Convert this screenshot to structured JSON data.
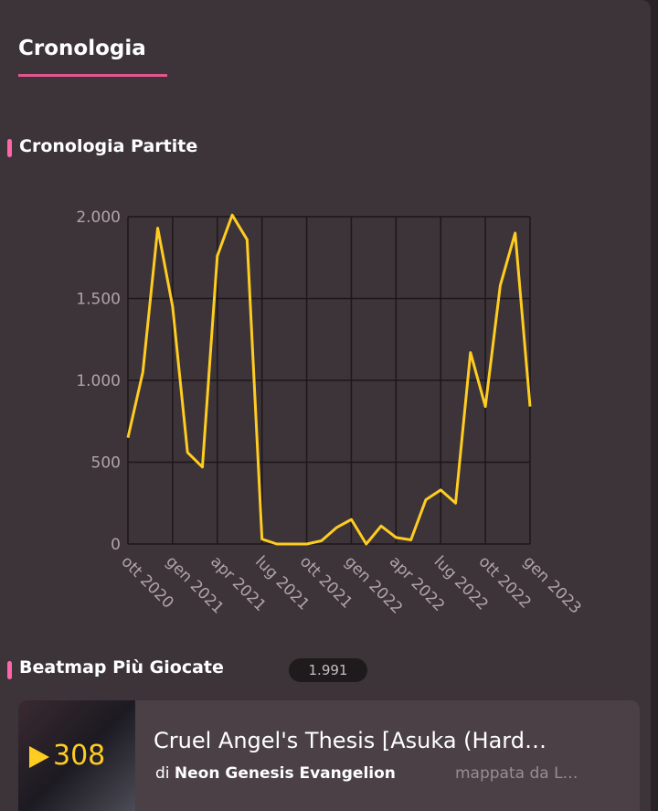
{
  "tab": "Cronologia",
  "section_title": "Cronologia Partite",
  "chart_data": {
    "type": "line",
    "categories": [
      "ott 2020",
      null,
      null,
      "gen 2021",
      null,
      null,
      "apr 2021",
      null,
      null,
      "lug 2021",
      null,
      null,
      "ott 2021",
      null,
      null,
      "gen 2022",
      null,
      null,
      "apr 2022",
      null,
      null,
      "lug 2022",
      null,
      null,
      "ott 2022",
      null,
      null,
      "gen 2023"
    ],
    "values": [
      650,
      1050,
      1930,
      1450,
      560,
      470,
      1760,
      2010,
      1860,
      30,
      0,
      0,
      0,
      20,
      100,
      150,
      0,
      110,
      40,
      25,
      270,
      330,
      250,
      1170,
      840,
      1580,
      1900,
      840
    ],
    "color": "#ffcc22",
    "ylim": [
      0,
      2000
    ],
    "yticks": [
      0,
      500,
      {
        "value": 1000,
        "label": "1.000"
      },
      {
        "value": 1500,
        "label": "1.500"
      },
      {
        "value": 2000,
        "label": "2.000"
      }
    ],
    "grid": true
  },
  "beatmaps": {
    "title": "Beatmap Più Giocate",
    "count": "1.991",
    "items": [
      {
        "plays": 308,
        "title": "Cruel Angel's Thesis [Asuka (Hard…",
        "by": "di",
        "artist": "Neon Genesis Evangelion",
        "mapper": "mappata da L…"
      }
    ]
  }
}
